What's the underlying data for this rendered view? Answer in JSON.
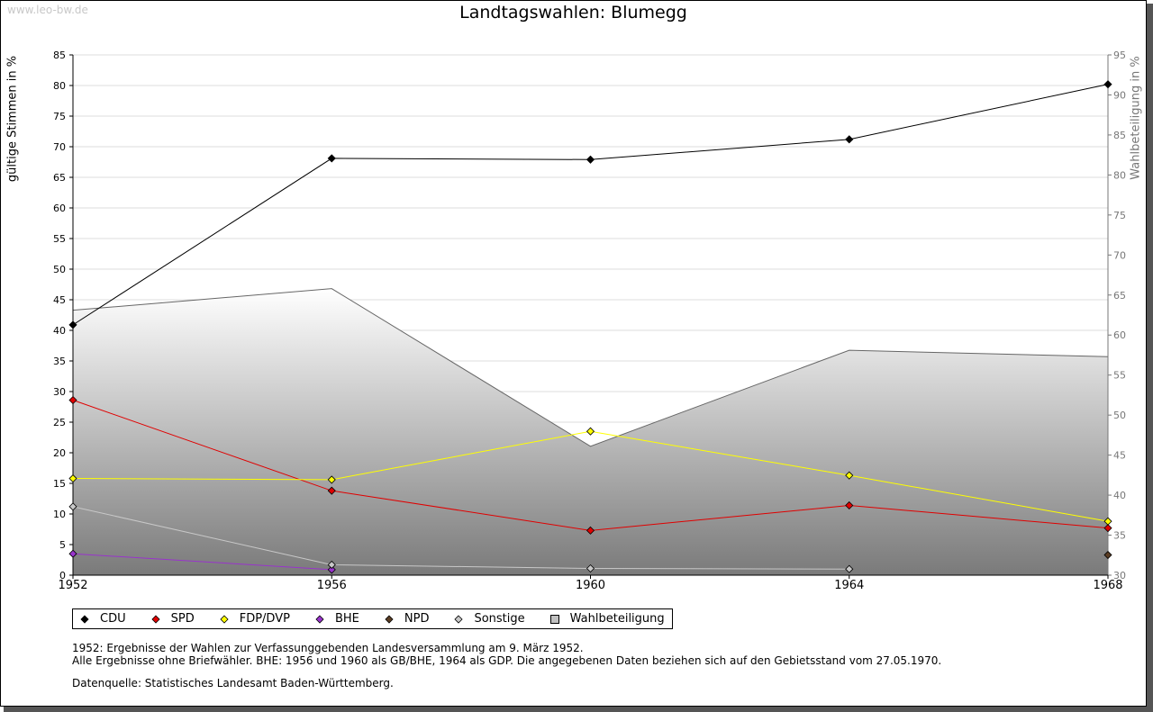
{
  "watermark": "www.leo-bw.de",
  "chart_data": {
    "type": "line",
    "title": "Landtagswahlen: Blumegg",
    "ylabel": "gültige Stimmen in %",
    "y2label": "Wahlbeteiligung in %",
    "x": [
      "1952",
      "1956",
      "1960",
      "1964",
      "1968"
    ],
    "ylim": [
      0,
      85
    ],
    "yticks": [
      0,
      5,
      10,
      15,
      20,
      25,
      30,
      35,
      40,
      45,
      50,
      55,
      60,
      65,
      70,
      75,
      80,
      85
    ],
    "y2lim": [
      30,
      95
    ],
    "y2ticks": [
      30,
      35,
      40,
      45,
      50,
      55,
      60,
      65,
      70,
      75,
      80,
      85,
      90,
      95
    ],
    "grid": true,
    "legend_position": "bottom-left",
    "series": [
      {
        "name": "CDU",
        "color": "#000000",
        "values": [
          40.9,
          68.1,
          67.9,
          71.2,
          80.2
        ]
      },
      {
        "name": "SPD",
        "color": "#e00000",
        "values": [
          28.6,
          13.8,
          7.3,
          11.4,
          7.7
        ]
      },
      {
        "name": "FDP/DVP",
        "color": "#ffff00",
        "values": [
          15.8,
          15.6,
          23.5,
          16.3,
          8.8
        ]
      },
      {
        "name": "BHE",
        "color": "#9933cc",
        "values": [
          3.5,
          0.9,
          null,
          null,
          null
        ]
      },
      {
        "name": "NPD",
        "color": "#5a3d24",
        "values": [
          null,
          null,
          null,
          null,
          3.3
        ]
      },
      {
        "name": "Sonstige",
        "color": "#c8c8c8",
        "values": [
          11.2,
          1.7,
          1.1,
          1.0,
          null
        ]
      }
    ],
    "area_series": {
      "name": "Wahlbeteiligung",
      "axis": "right",
      "color": "#a0a0a0",
      "values": [
        63.1,
        65.8,
        46.1,
        58.1,
        57.3
      ]
    }
  },
  "notes": [
    "1952: Ergebnisse der Wahlen zur Verfassunggebenden Landesversammlung am 9. März 1952.",
    "Alle Ergebnisse ohne Briefwähler. BHE: 1956 und 1960 als GB/BHE, 1964 als GDP. Die angegebenen Daten beziehen sich auf den Gebietsstand vom 27.05.1970."
  ],
  "source": "Datenquelle: Statistisches Landesamt Baden-Württemberg."
}
